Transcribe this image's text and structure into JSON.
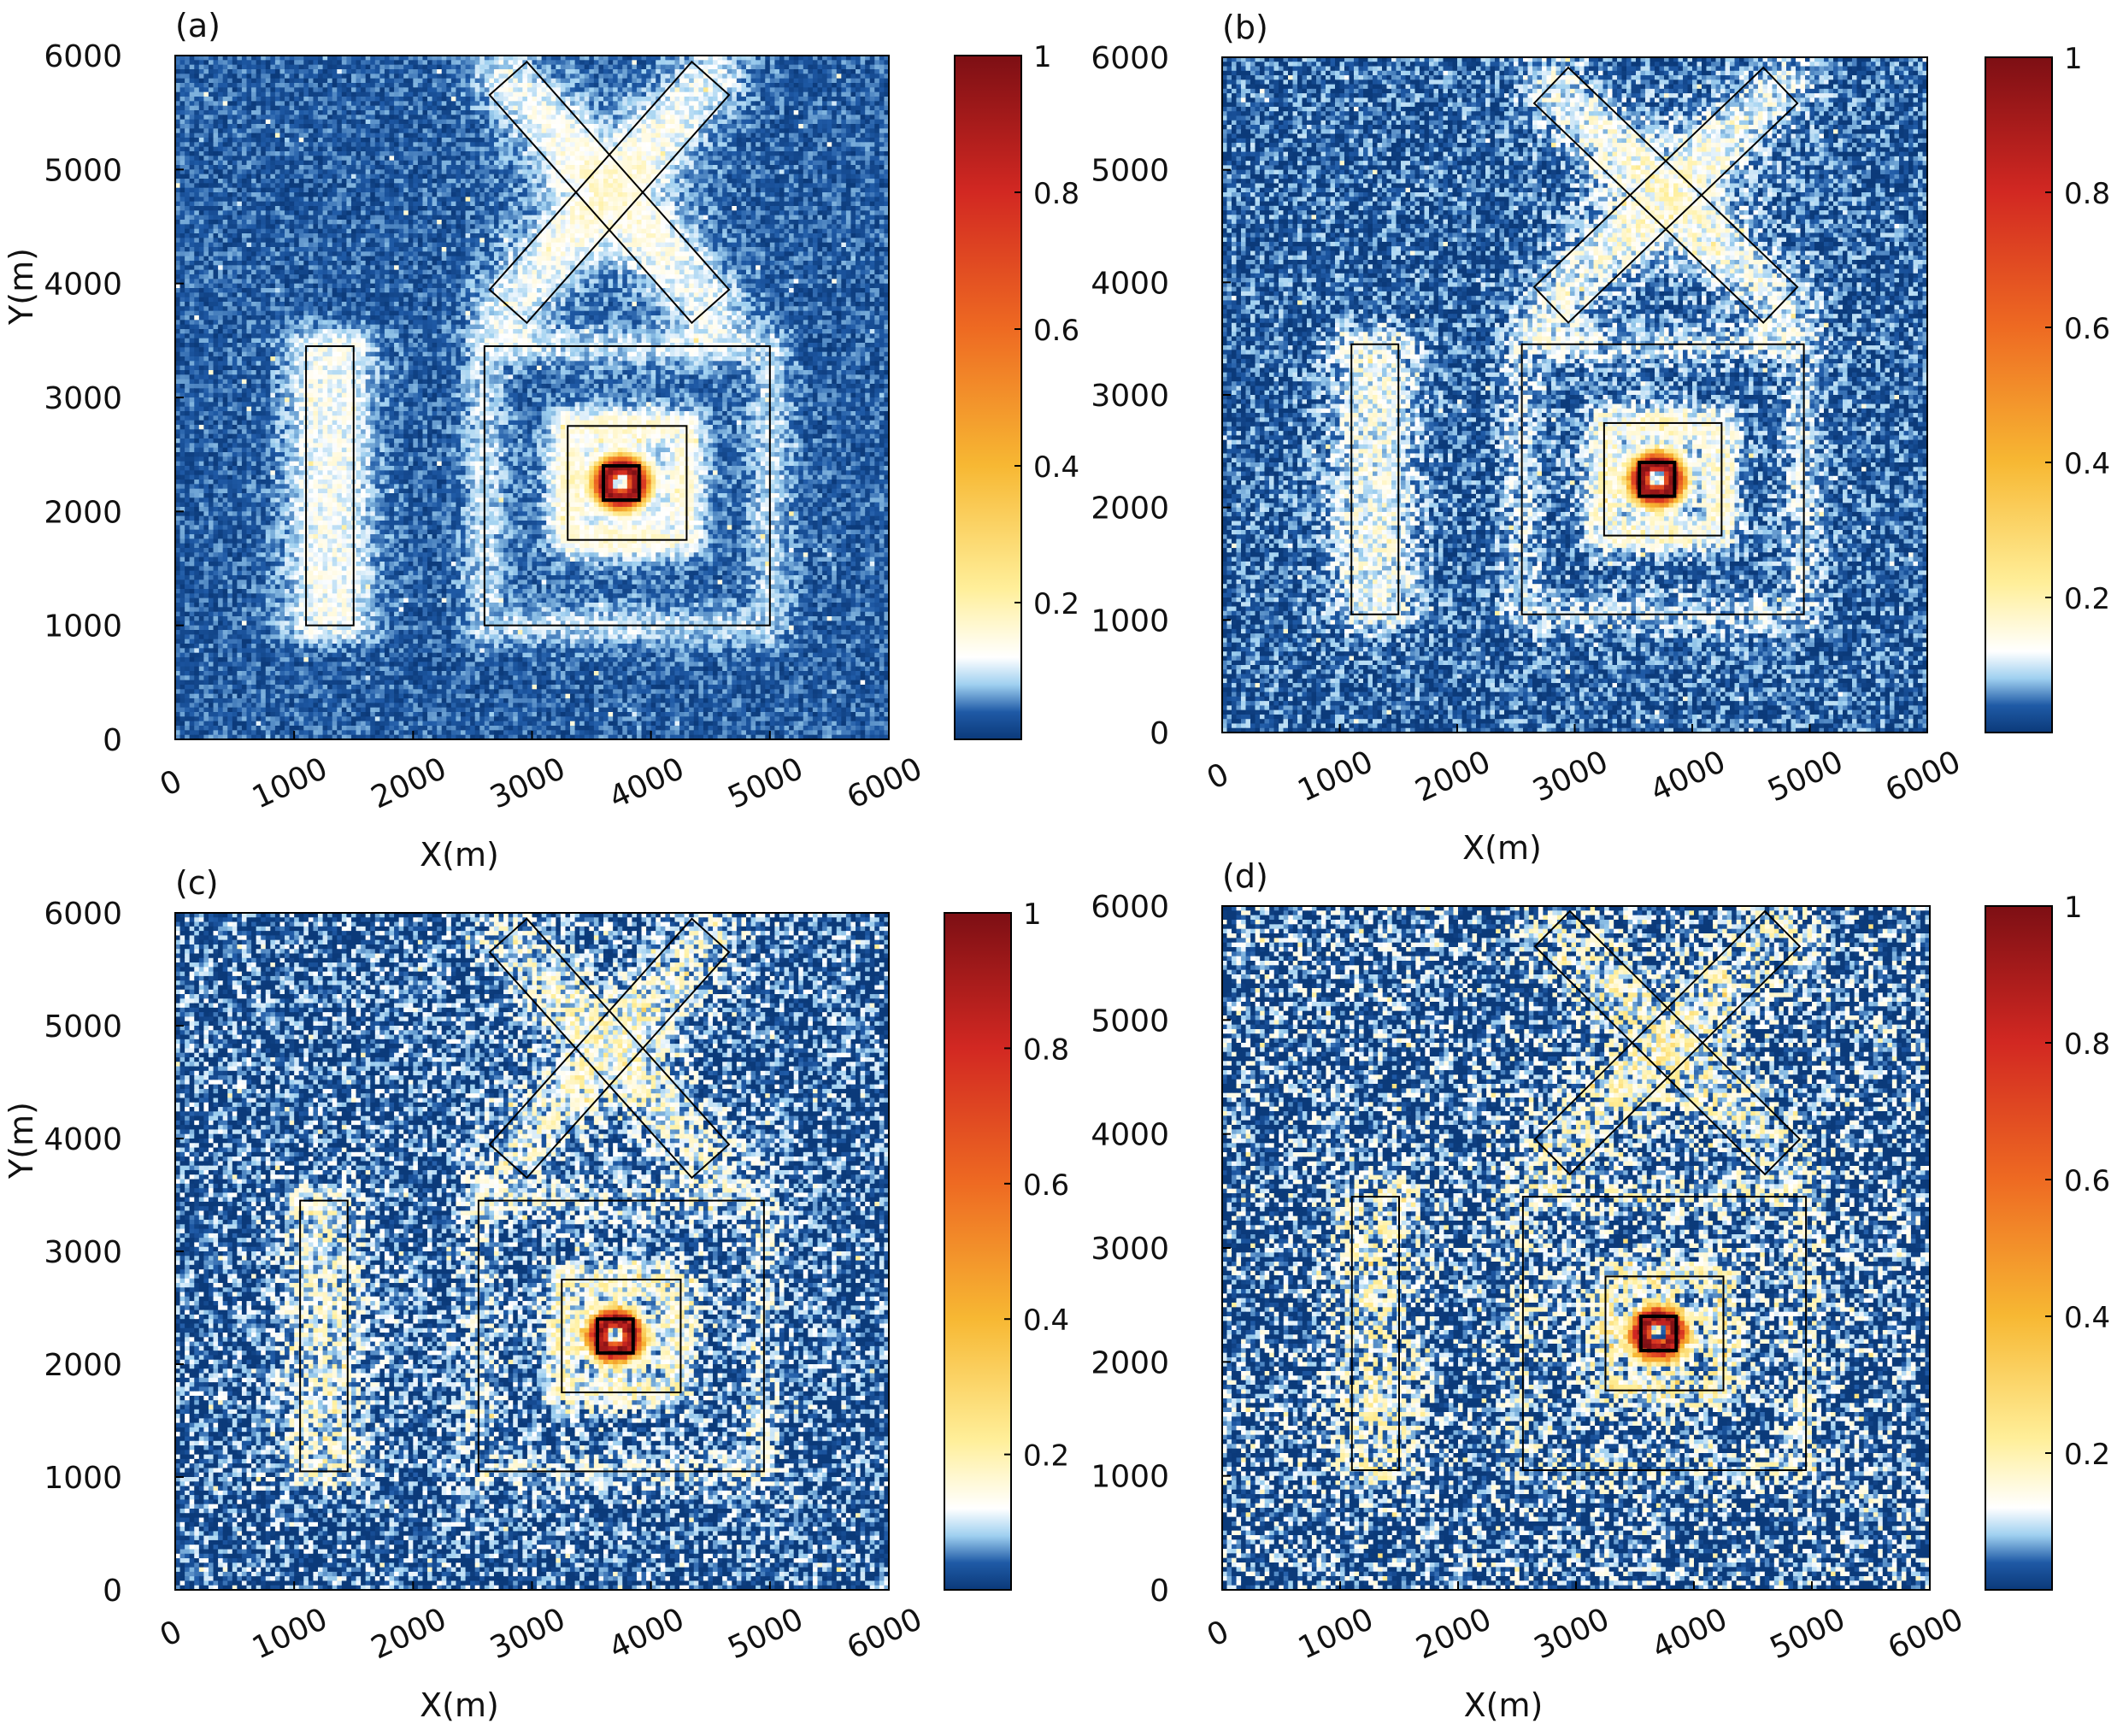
{
  "figure": {
    "description_colorbar_colors": [
      "#0b3a7a",
      "#1f5aa6",
      "#9fd0f0",
      "#ffffff",
      "#ffef9a",
      "#f7b833",
      "#ee6a22",
      "#d22822",
      "#7d0f14"
    ],
    "background_field_color": "#163f86"
  },
  "chart_data": [
    {
      "type": "heatmap",
      "panel_label": "(a)",
      "xlabel": "X(m)",
      "ylabel": "Y(m)",
      "xlim": [
        0,
        6000
      ],
      "ylim": [
        0,
        6000
      ],
      "xticks": [
        "0",
        "1000",
        "2000",
        "3000",
        "4000",
        "5000",
        "6000"
      ],
      "yticks": [
        "0",
        "1000",
        "2000",
        "3000",
        "4000",
        "5000",
        "6000"
      ],
      "colorbar": {
        "range": [
          0,
          1
        ],
        "ticks": [
          "0.2",
          "0.4",
          "0.6",
          "0.8",
          "1"
        ]
      },
      "noise_level": 0.06,
      "outlines": {
        "bar": [
          1100,
          1000,
          1500,
          3450
        ],
        "outer_square": [
          2600,
          1000,
          5000,
          3450
        ],
        "inner_square": [
          3300,
          1750,
          4300,
          2750
        ],
        "core_square": [
          3600,
          2100,
          3900,
          2400
        ],
        "cross_a": [
          [
            2800,
            3800
          ],
          [
            4500,
            5800
          ]
        ],
        "cross_b": [
          [
            2800,
            5800
          ],
          [
            4500,
            3800
          ]
        ],
        "cross_half_width": 210
      }
    },
    {
      "type": "heatmap",
      "panel_label": "(b)",
      "xlabel": "X(m)",
      "ylabel": "",
      "xlim": [
        0,
        6000
      ],
      "ylim": [
        0,
        6000
      ],
      "xticks": [
        "0",
        "1000",
        "2000",
        "3000",
        "4000",
        "5000",
        "6000"
      ],
      "yticks": [
        "0",
        "1000",
        "2000",
        "3000",
        "4000",
        "5000",
        "6000"
      ],
      "colorbar": {
        "range": [
          0,
          1
        ],
        "ticks": [
          "0.2",
          "0.4",
          "0.6",
          "0.8",
          "1"
        ]
      },
      "noise_level": 0.1,
      "outlines": {
        "bar": [
          1100,
          1050,
          1500,
          3450
        ],
        "outer_square": [
          2550,
          1050,
          4950,
          3450
        ],
        "inner_square": [
          3250,
          1750,
          4250,
          2750
        ],
        "core_square": [
          3550,
          2100,
          3850,
          2400
        ],
        "cross_a": [
          [
            2800,
            3800
          ],
          [
            4750,
            5750
          ]
        ],
        "cross_b": [
          [
            2800,
            5750
          ],
          [
            4750,
            3800
          ]
        ],
        "cross_half_width": 210
      }
    },
    {
      "type": "heatmap",
      "panel_label": "(c)",
      "xlabel": "X(m)",
      "ylabel": "Y(m)",
      "xlim": [
        0,
        6000
      ],
      "ylim": [
        0,
        6000
      ],
      "xticks": [
        "0",
        "1000",
        "2000",
        "3000",
        "4000",
        "5000",
        "6000"
      ],
      "yticks": [
        "0",
        "1000",
        "2000",
        "3000",
        "4000",
        "5000",
        "6000"
      ],
      "colorbar": {
        "range": [
          0,
          1
        ],
        "ticks": [
          "0.2",
          "0.4",
          "0.6",
          "0.8",
          "1"
        ]
      },
      "noise_level": 0.15,
      "outlines": {
        "bar": [
          1050,
          1050,
          1450,
          3450
        ],
        "outer_square": [
          2550,
          1050,
          4950,
          3450
        ],
        "inner_square": [
          3250,
          1750,
          4250,
          2750
        ],
        "core_square": [
          3550,
          2100,
          3850,
          2400
        ],
        "cross_a": [
          [
            2800,
            3800
          ],
          [
            4500,
            5800
          ]
        ],
        "cross_b": [
          [
            2800,
            5800
          ],
          [
            4500,
            3800
          ]
        ],
        "cross_half_width": 210
      }
    },
    {
      "type": "heatmap",
      "panel_label": "(d)",
      "xlabel": "X(m)",
      "ylabel": "",
      "xlim": [
        0,
        6000
      ],
      "ylim": [
        0,
        6000
      ],
      "xticks": [
        "0",
        "1000",
        "2000",
        "3000",
        "4000",
        "5000",
        "6000"
      ],
      "yticks": [
        "0",
        "1000",
        "2000",
        "3000",
        "4000",
        "5000",
        "6000"
      ],
      "colorbar": {
        "range": [
          0,
          1
        ],
        "ticks": [
          "0.2",
          "0.4",
          "0.6",
          "0.8",
          "1"
        ]
      },
      "noise_level": 0.2,
      "outlines": {
        "bar": [
          1100,
          1050,
          1500,
          3450
        ],
        "outer_square": [
          2550,
          1050,
          4950,
          3450
        ],
        "inner_square": [
          3250,
          1750,
          4250,
          2750
        ],
        "core_square": [
          3550,
          2100,
          3850,
          2400
        ],
        "cross_a": [
          [
            2800,
            3800
          ],
          [
            4750,
            5800
          ]
        ],
        "cross_b": [
          [
            2800,
            5800
          ],
          [
            4750,
            3800
          ]
        ],
        "cross_half_width": 210
      }
    }
  ]
}
